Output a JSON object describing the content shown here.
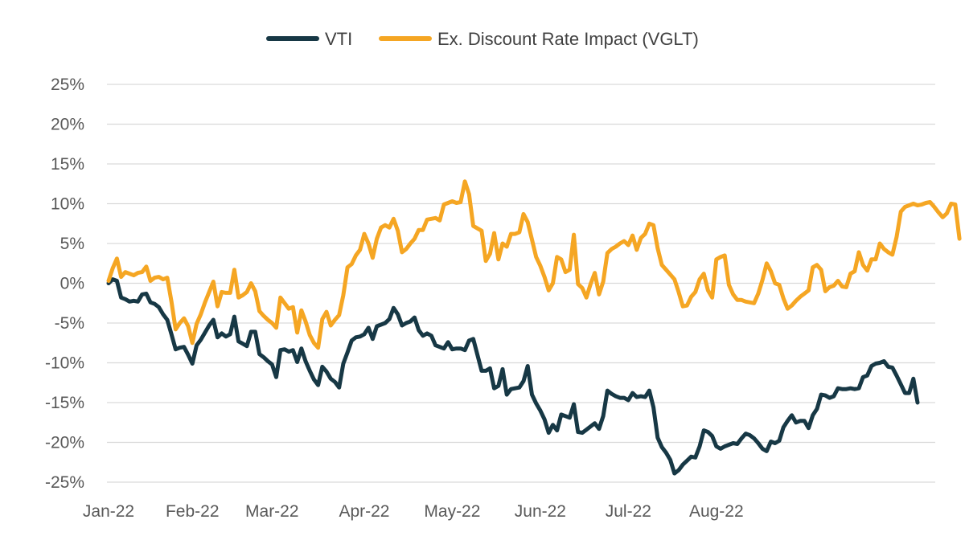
{
  "chart_data": {
    "type": "line",
    "title": "",
    "xlabel": "",
    "ylabel": "",
    "ylim": [
      -25,
      25
    ],
    "y_ticks": [
      "25%",
      "20%",
      "15%",
      "10%",
      "5%",
      "0%",
      "-5%",
      "-10%",
      "-15%",
      "-20%",
      "-25%"
    ],
    "y_tick_values": [
      25,
      20,
      15,
      10,
      5,
      0,
      -5,
      -10,
      -15,
      -20,
      -25
    ],
    "x_ticks": [
      "Jan-22",
      "Feb-22",
      "Mar-22",
      "Apr-22",
      "May-22",
      "Jun-22",
      "Jul-22",
      "Aug-22"
    ],
    "x_tick_index": [
      0,
      20,
      39,
      61,
      82,
      103,
      124,
      145
    ],
    "grid": true,
    "legend_position": "top-center",
    "series": [
      {
        "name": "VTI",
        "color": "#173845",
        "values": [
          0,
          0.5,
          0.3,
          -1.8,
          -2.0,
          -2.3,
          -2.2,
          -2.3,
          -1.4,
          -1.3,
          -2.4,
          -2.6,
          -3.0,
          -3.9,
          -4.6,
          -6.4,
          -8.3,
          -8.1,
          -8.0,
          -9.0,
          -10.1,
          -7.8,
          -7.1,
          -6.2,
          -5.3,
          -4.6,
          -6.8,
          -6.3,
          -6.7,
          -6.4,
          -4.2,
          -7.3,
          -7.6,
          -7.9,
          -6.1,
          -6.1,
          -8.9,
          -9.3,
          -9.8,
          -10.2,
          -11.8,
          -8.4,
          -8.3,
          -8.6,
          -8.4,
          -9.9,
          -8.2,
          -9.8,
          -11.0,
          -12.1,
          -12.8,
          -10.5,
          -11.1,
          -12.0,
          -12.4,
          -13.1,
          -10.1,
          -8.7,
          -7.2,
          -6.8,
          -6.7,
          -6.4,
          -5.6,
          -7.0,
          -5.4,
          -5.2,
          -5.0,
          -4.5,
          -3.1,
          -3.9,
          -5.3,
          -5.0,
          -4.8,
          -4.3,
          -5.9,
          -6.6,
          -6.3,
          -6.6,
          -7.8,
          -8.0,
          -8.2,
          -7.4,
          -8.3,
          -8.2,
          -8.2,
          -8.4,
          -7.2,
          -7.0,
          -9.0,
          -11.0,
          -11.0,
          -10.7,
          -13.2,
          -12.9,
          -10.8,
          -14.0,
          -13.3,
          -13.2,
          -13.1,
          -12.3,
          -10.4,
          -14.0,
          -15.1,
          -16.0,
          -17.1,
          -18.8,
          -17.8,
          -18.5,
          -16.5,
          -16.7,
          -16.9,
          -15.2,
          -18.7,
          -18.8,
          -18.4,
          -18.0,
          -17.6,
          -18.3,
          -16.7,
          -13.5,
          -13.9,
          -14.2,
          -14.4,
          -14.4,
          -14.7,
          -13.8,
          -14.3,
          -14.2,
          -14.3,
          -13.5,
          -15.6,
          -19.4,
          -20.6,
          -21.3,
          -22.2,
          -23.9,
          -23.5,
          -22.8,
          -22.3,
          -21.8,
          -21.9,
          -20.5,
          -18.5,
          -18.7,
          -19.2,
          -20.5,
          -20.8,
          -20.5,
          -20.3,
          -20.1,
          -20.2,
          -19.5,
          -18.9,
          -19.1,
          -19.5,
          -20.1,
          -20.8,
          -21.1,
          -19.9,
          -20.1,
          -19.8,
          -18.1,
          -17.3,
          -16.6,
          -17.5,
          -17.3,
          -17.3,
          -18.2,
          -16.6,
          -15.8,
          -14.0,
          -14.1,
          -14.4,
          -14.2,
          -13.2,
          -13.3,
          -13.3,
          -13.2,
          -13.3,
          -13.2,
          -11.8,
          -11.6,
          -10.4,
          -10.1,
          -10.0,
          -9.8,
          -10.5,
          -10.6,
          -11.6,
          -12.7,
          -13.8,
          -13.8,
          -12.0,
          -15.0
        ]
      },
      {
        "name": "Ex. Discount Rate Impact (VGLT)",
        "color": "#F5A623",
        "values": [
          0.3,
          1.9,
          3.1,
          0.8,
          1.4,
          1.2,
          1.0,
          1.3,
          1.4,
          2.1,
          0.3,
          0.7,
          0.8,
          0.5,
          0.7,
          -2.3,
          -5.8,
          -5.0,
          -4.4,
          -5.4,
          -7.5,
          -5.1,
          -3.9,
          -2.4,
          -1.1,
          0.2,
          -2.9,
          -1.1,
          -1.2,
          -1.2,
          1.7,
          -1.8,
          -1.5,
          -1.1,
          0.0,
          -1.0,
          -3.5,
          -4.1,
          -4.6,
          -5.0,
          -5.6,
          -1.8,
          -2.5,
          -3.2,
          -3.0,
          -6.2,
          -3.4,
          -4.8,
          -6.5,
          -7.5,
          -8.1,
          -4.5,
          -3.6,
          -5.3,
          -4.6,
          -4.0,
          -1.5,
          2.0,
          2.4,
          3.5,
          4.2,
          6.2,
          5.0,
          3.2,
          5.6,
          7.0,
          7.3,
          7.0,
          8.1,
          6.6,
          3.9,
          4.3,
          5.0,
          5.6,
          6.7,
          6.7,
          8.0,
          8.1,
          8.2,
          7.9,
          9.9,
          10.1,
          10.3,
          10.1,
          10.2,
          12.8,
          11.2,
          7.2,
          6.9,
          6.6,
          2.8,
          3.7,
          6.3,
          3.0,
          5.0,
          4.6,
          6.2,
          6.2,
          6.4,
          8.7,
          7.7,
          5.5,
          3.3,
          2.2,
          0.8,
          -0.9,
          0.0,
          3.3,
          3.0,
          1.4,
          1.7,
          6.1,
          -0.1,
          -0.6,
          -1.8,
          -0.1,
          1.3,
          -1.4,
          0.2,
          3.8,
          4.3,
          4.6,
          5.0,
          5.3,
          4.8,
          6.0,
          4.2,
          5.7,
          6.2,
          7.5,
          7.3,
          4.4,
          2.3,
          1.7,
          1.1,
          0.5,
          -1.1,
          -2.9,
          -2.8,
          -1.7,
          -1.1,
          0.5,
          1.2,
          -0.9,
          -1.8,
          3.0,
          3.3,
          3.5,
          -0.2,
          -1.4,
          -2.1,
          -2.1,
          -2.3,
          -2.4,
          -2.5,
          -1.3,
          0.4,
          2.5,
          1.5,
          0.0,
          -0.2,
          -1.9,
          -3.2,
          -2.8,
          -2.2,
          -1.7,
          -1.3,
          -0.9,
          2.0,
          2.3,
          1.7,
          -1.0,
          -0.5,
          -0.3,
          0.3,
          -0.4,
          -0.5,
          1.2,
          1.5,
          3.9,
          2.3,
          1.6,
          3.0,
          3.0,
          5.0,
          4.3,
          3.9,
          3.6,
          5.8,
          9.0,
          9.6,
          9.8,
          10.0,
          9.8,
          9.9,
          10.1,
          10.2,
          9.6,
          8.9,
          8.3,
          8.8,
          10.0,
          9.9,
          5.6
        ]
      }
    ]
  }
}
